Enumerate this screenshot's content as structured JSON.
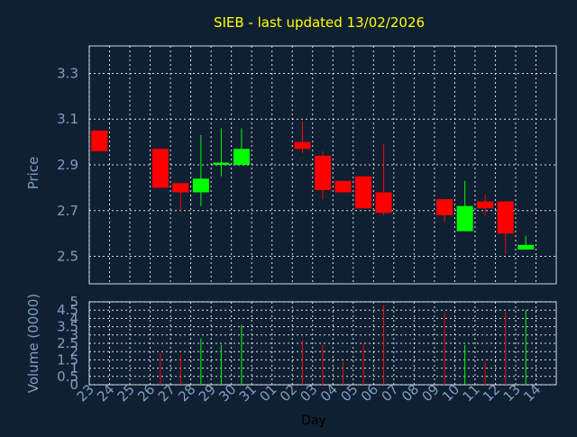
{
  "chart_data": [
    {
      "type": "candlestick",
      "title": "SIEB - last updated 13/02/2026",
      "ylabel": "Price",
      "ylim": [
        2.38,
        3.42
      ],
      "yticks": [
        "2.5",
        "2.7",
        "2.9",
        "3.1",
        "3.3"
      ],
      "grid": true,
      "colors": {
        "up": "#00ff00",
        "down": "#ff0000"
      },
      "candles": [
        {
          "day": "23",
          "open": 3.05,
          "close": 2.96,
          "high": 3.05,
          "low": 2.96
        },
        {
          "day": "26",
          "open": 2.97,
          "close": 2.8,
          "high": 2.97,
          "low": 2.8
        },
        {
          "day": "27",
          "open": 2.82,
          "close": 2.78,
          "high": 2.82,
          "low": 2.7
        },
        {
          "day": "28",
          "open": 2.78,
          "close": 2.84,
          "high": 3.03,
          "low": 2.72
        },
        {
          "day": "29",
          "open": 2.9,
          "close": 2.91,
          "high": 3.06,
          "low": 2.85
        },
        {
          "day": "30",
          "open": 2.9,
          "close": 2.97,
          "high": 3.06,
          "low": 2.9
        },
        {
          "day": "02",
          "open": 3.0,
          "close": 2.97,
          "high": 3.09,
          "low": 2.95
        },
        {
          "day": "03",
          "open": 2.94,
          "close": 2.79,
          "high": 2.96,
          "low": 2.75
        },
        {
          "day": "04",
          "open": 2.83,
          "close": 2.78,
          "high": 2.83,
          "low": 2.78
        },
        {
          "day": "05",
          "open": 2.85,
          "close": 2.71,
          "high": 2.85,
          "low": 2.71
        },
        {
          "day": "06",
          "open": 2.78,
          "close": 2.69,
          "high": 2.99,
          "low": 2.68
        },
        {
          "day": "09",
          "open": 2.75,
          "close": 2.68,
          "high": 2.75,
          "low": 2.65
        },
        {
          "day": "10",
          "open": 2.61,
          "close": 2.72,
          "high": 2.83,
          "low": 2.61
        },
        {
          "day": "11",
          "open": 2.74,
          "close": 2.71,
          "high": 2.77,
          "low": 2.68
        },
        {
          "day": "12",
          "open": 2.74,
          "close": 2.6,
          "high": 2.74,
          "low": 2.51
        },
        {
          "day": "13",
          "open": 2.53,
          "close": 2.55,
          "high": 2.59,
          "low": 2.53
        }
      ]
    },
    {
      "type": "bar",
      "ylabel": "Volume (0000)",
      "xlabel": "Day",
      "ylim": [
        0,
        5
      ],
      "yticks": [
        "0",
        "0.5",
        "1",
        "1.5",
        "2",
        "2.5",
        "3",
        "3.5",
        "4",
        "4.5",
        "5"
      ],
      "categories": [
        "23",
        "24",
        "25",
        "26",
        "27",
        "28",
        "29",
        "30",
        "31",
        "01",
        "02",
        "03",
        "04",
        "05",
        "06",
        "07",
        "08",
        "09",
        "10",
        "11",
        "12",
        "13",
        "14"
      ],
      "volumes": [
        {
          "day": "26",
          "value": 1.9,
          "dir": "down"
        },
        {
          "day": "27",
          "value": 1.8,
          "dir": "down"
        },
        {
          "day": "28",
          "value": 2.8,
          "dir": "up"
        },
        {
          "day": "29",
          "value": 2.4,
          "dir": "up"
        },
        {
          "day": "30",
          "value": 3.6,
          "dir": "up"
        },
        {
          "day": "02",
          "value": 2.7,
          "dir": "down"
        },
        {
          "day": "03",
          "value": 2.4,
          "dir": "down"
        },
        {
          "day": "04",
          "value": 1.4,
          "dir": "down"
        },
        {
          "day": "05",
          "value": 2.5,
          "dir": "down"
        },
        {
          "day": "06",
          "value": 4.8,
          "dir": "down"
        },
        {
          "day": "09",
          "value": 4.4,
          "dir": "down"
        },
        {
          "day": "10",
          "value": 2.4,
          "dir": "up"
        },
        {
          "day": "11",
          "value": 1.4,
          "dir": "down"
        },
        {
          "day": "12",
          "value": 4.4,
          "dir": "down"
        },
        {
          "day": "13",
          "value": 4.5,
          "dir": "up"
        }
      ]
    }
  ]
}
